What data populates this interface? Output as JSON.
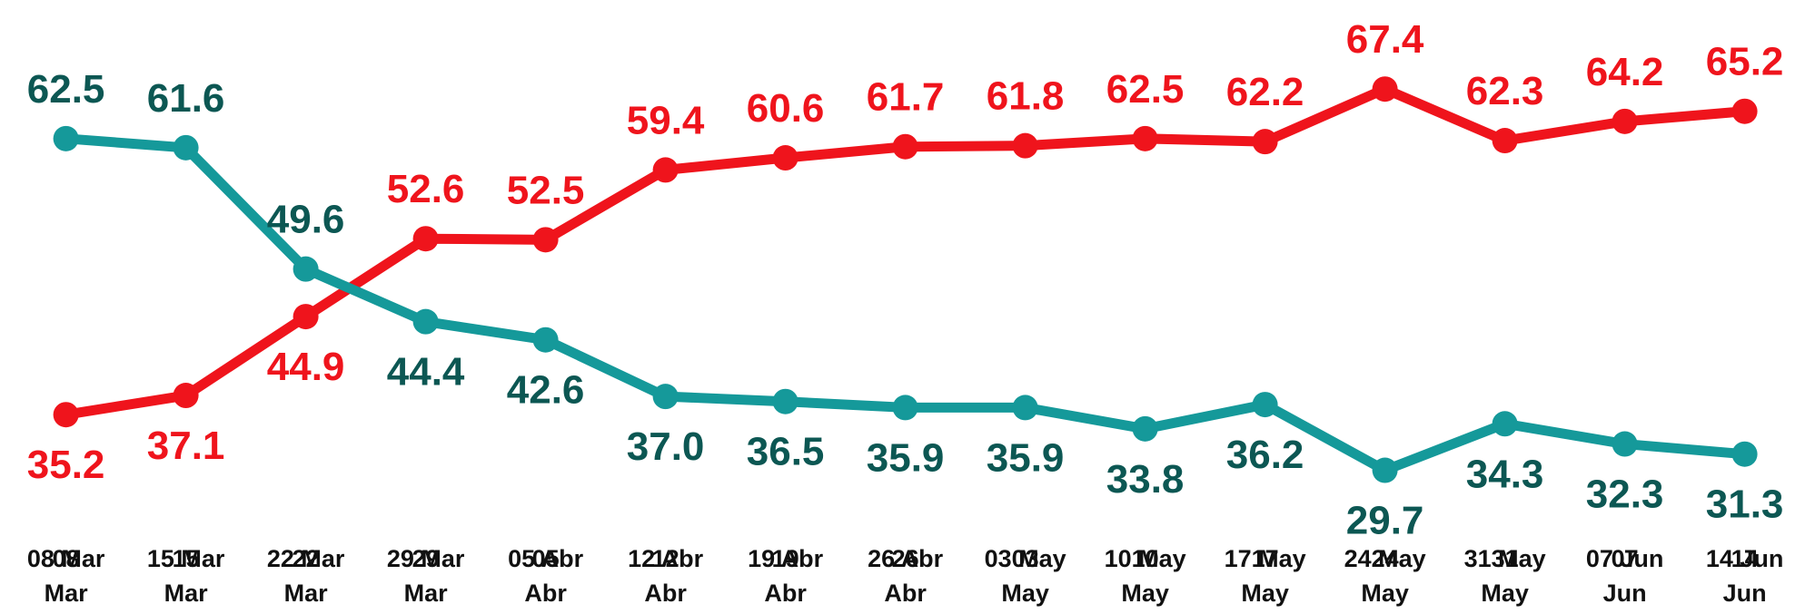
{
  "chart_data": {
    "type": "line",
    "categories": [
      "08 Mar",
      "15 Mar",
      "22 Mar",
      "29 Mar",
      "05 Abr",
      "12 Abr",
      "19 Abr",
      "26 Abr",
      "03 May",
      "10 May",
      "17 May",
      "24 May",
      "31 May",
      "07 Jun",
      "14 Jun"
    ],
    "series": [
      {
        "color": "#ef141c",
        "label_color": "#ef141c",
        "values": [
          35.2,
          37.1,
          44.9,
          52.6,
          52.5,
          59.4,
          60.6,
          61.7,
          61.8,
          62.5,
          62.2,
          67.4,
          62.3,
          64.2,
          65.2
        ],
        "value_labels": [
          "35.2",
          "37.1",
          "44.9",
          "52.6",
          "52.5",
          "59.4",
          "60.6",
          "61.7",
          "61.8",
          "62.5",
          "62.2",
          "67.4",
          "62.3",
          "64.2",
          "65.2"
        ]
      },
      {
        "color": "#15999a",
        "label_color": "#0c5753",
        "values": [
          62.5,
          61.6,
          49.6,
          44.4,
          42.6,
          37.0,
          36.5,
          35.9,
          35.9,
          33.8,
          36.2,
          29.7,
          34.3,
          32.3,
          31.3
        ],
        "value_labels": [
          "62.5",
          "61.6",
          "49.6",
          "44.4",
          "42.6",
          "37.0",
          "36.5",
          "35.9",
          "35.9",
          "33.8",
          "36.2",
          "29.7",
          "34.3",
          "32.3",
          "31.3"
        ]
      }
    ]
  }
}
